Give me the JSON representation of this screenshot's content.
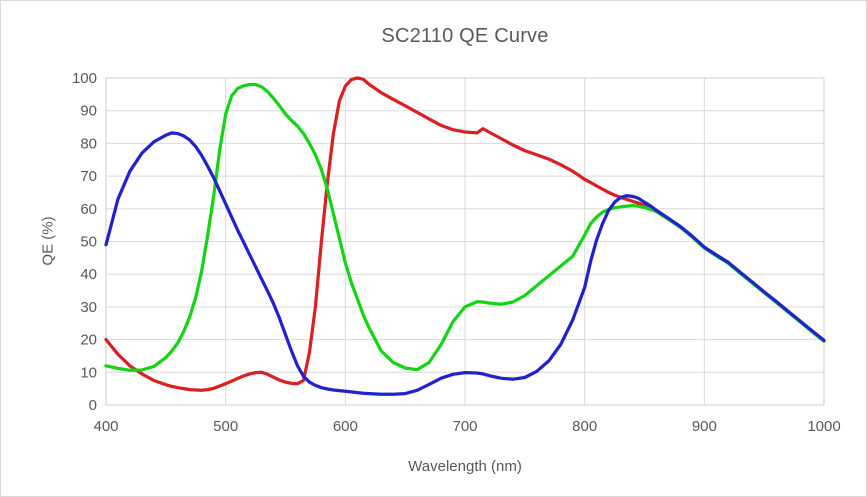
{
  "chart_data": {
    "type": "line",
    "title": "SC2110 QE Curve",
    "xlabel": "Wavelength (nm)",
    "ylabel": "QE (%)",
    "xlim": [
      400,
      1000
    ],
    "ylim": [
      0,
      100
    ],
    "xticks": [
      400,
      500,
      600,
      700,
      800,
      900,
      1000
    ],
    "yticks": [
      0,
      10,
      20,
      30,
      40,
      50,
      60,
      70,
      80,
      90,
      100
    ],
    "grid": true,
    "legend": "none",
    "grid_color": "#d9d9d9",
    "border_color": "#cfcfcf",
    "text_color": "#595959",
    "x": [
      400,
      410,
      420,
      430,
      440,
      450,
      455,
      460,
      465,
      470,
      475,
      480,
      485,
      490,
      495,
      500,
      505,
      510,
      515,
      520,
      525,
      530,
      535,
      540,
      545,
      550,
      555,
      560,
      565,
      570,
      575,
      580,
      585,
      590,
      595,
      600,
      605,
      610,
      615,
      620,
      630,
      640,
      650,
      660,
      670,
      680,
      690,
      700,
      710,
      715,
      720,
      730,
      740,
      750,
      760,
      770,
      780,
      790,
      800,
      805,
      810,
      815,
      820,
      825,
      830,
      835,
      840,
      845,
      850,
      855,
      860,
      870,
      880,
      890,
      900,
      910,
      920,
      930,
      940,
      950,
      960,
      970,
      980,
      990,
      1000
    ],
    "series": [
      {
        "name": "red",
        "color": "#d92121",
        "values": [
          20,
          15.5,
          12,
          9.5,
          7.5,
          6.2,
          5.7,
          5.3,
          5,
          4.7,
          4.6,
          4.5,
          4.7,
          5.1,
          5.8,
          6.5,
          7.3,
          8.1,
          8.9,
          9.5,
          9.9,
          10,
          9.4,
          8.5,
          7.6,
          7,
          6.6,
          6.5,
          7.5,
          16,
          30,
          50,
          68,
          83,
          93,
          97.5,
          99.5,
          100,
          99.6,
          98,
          95.5,
          93.5,
          91.5,
          89.5,
          87.5,
          85.5,
          84.2,
          83.5,
          83.2,
          84.5,
          83.5,
          81.5,
          79.5,
          77.8,
          76.5,
          75.2,
          73.5,
          71.5,
          69,
          68,
          67,
          66,
          65,
          64.2,
          63.5,
          62.9,
          62.3,
          61.7,
          61,
          60.2,
          59.2,
          56.9,
          54.4,
          51.4,
          48.1,
          45.7,
          43.4,
          40.4,
          37.4,
          34.4,
          31.5,
          28.5,
          25.5,
          22.5,
          19.6
        ]
      },
      {
        "name": "green",
        "color": "#15d415",
        "values": [
          12,
          11.2,
          10.6,
          10.7,
          11.8,
          14.5,
          16.5,
          19,
          22.5,
          27,
          33,
          41,
          52,
          64,
          78,
          89,
          94.5,
          96.8,
          97.6,
          98,
          98,
          97.3,
          95.8,
          93.8,
          91.5,
          89,
          87,
          85.3,
          83,
          80,
          76.5,
          72,
          66,
          58.5,
          51,
          43.5,
          37.5,
          32.5,
          27.5,
          23.5,
          16.5,
          13,
          11.3,
          10.8,
          13,
          18.5,
          25.5,
          30,
          31.6,
          31.5,
          31.2,
          30.8,
          31.5,
          33.5,
          36.5,
          39.5,
          42.5,
          45.5,
          52,
          55.5,
          57.5,
          59,
          59.8,
          60.3,
          60.6,
          60.8,
          61,
          60.8,
          60.4,
          59.8,
          59.1,
          56.8,
          54.3,
          51.3,
          48,
          45.6,
          43.3,
          40.3,
          37.3,
          34.3,
          31.4,
          28.4,
          25.4,
          22.4,
          19.5
        ]
      },
      {
        "name": "blue",
        "color": "#2222cc",
        "values": [
          49,
          63,
          71.5,
          77,
          80.5,
          82.5,
          83.2,
          83,
          82.3,
          81,
          79,
          76.3,
          73,
          69.5,
          65.5,
          61.5,
          57.5,
          53.5,
          49.8,
          46,
          42.3,
          38.5,
          34.8,
          31,
          26.5,
          21.5,
          16.5,
          12,
          8.8,
          7,
          6,
          5.3,
          4.9,
          4.6,
          4.4,
          4.2,
          4,
          3.8,
          3.6,
          3.5,
          3.3,
          3.3,
          3.5,
          4.5,
          6.3,
          8.2,
          9.4,
          9.9,
          9.8,
          9.5,
          9,
          8.2,
          7.9,
          8.4,
          10.3,
          13.5,
          18.5,
          26,
          36,
          44,
          50.5,
          55.5,
          59.5,
          62,
          63.5,
          64,
          63.8,
          63.2,
          62,
          60.9,
          59.5,
          57.1,
          54.6,
          51.6,
          48.3,
          45.9,
          43.6,
          40.6,
          37.6,
          34.6,
          31.7,
          28.7,
          25.7,
          22.7,
          19.8
        ]
      }
    ]
  }
}
